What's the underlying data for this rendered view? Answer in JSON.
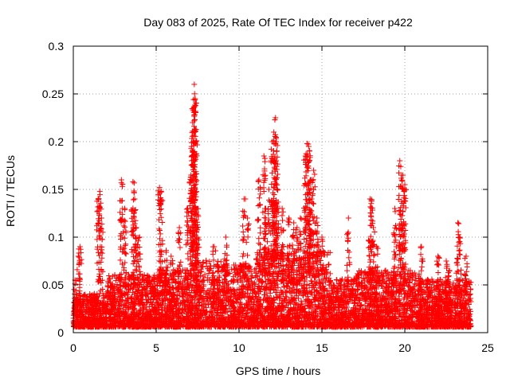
{
  "chart_data": {
    "type": "scatter",
    "title": "Day 083 of 2025, Rate Of TEC Index for receiver p422",
    "xlabel": "GPS time / hours",
    "ylabel": "ROTI / TECUs",
    "xlim": [
      0,
      25
    ],
    "ylim": [
      0,
      0.3
    ],
    "x_ticks": [
      0,
      5,
      10,
      15,
      20,
      25
    ],
    "x_tick_labels": [
      "0",
      "5",
      "10",
      "15",
      "20",
      "25"
    ],
    "y_ticks": [
      0,
      0.05,
      0.1,
      0.15,
      0.2,
      0.25,
      0.3
    ],
    "y_tick_labels": [
      "0",
      "0.05",
      "0.1",
      "0.15",
      "0.2",
      "0.25",
      "0.3"
    ],
    "grid": true,
    "marker": "+",
    "colors": {
      "points": "#ff0000",
      "grid": "#a0a0a0",
      "axes": "#000000"
    },
    "series": [
      {
        "name": "ROTI",
        "x": [
          0.1,
          0.3,
          0.4,
          1.5,
          1.6,
          1.7,
          2.9,
          3.1,
          3.6,
          3.7,
          3.8,
          4.0,
          5.2,
          5.3,
          5.6,
          5.9,
          6.4,
          6.9,
          7.1,
          7.15,
          7.2,
          7.25,
          7.3,
          7.35,
          7.4,
          7.45,
          7.5,
          8.5,
          9.2,
          10.3,
          10.5,
          11.2,
          11.5,
          11.6,
          11.8,
          12.0,
          12.1,
          12.2,
          12.25,
          12.3,
          12.6,
          13.0,
          13.3,
          13.5,
          13.7,
          14.0,
          14.1,
          14.2,
          14.25,
          14.3,
          14.5,
          14.7,
          15.0,
          16.6,
          17.9,
          18.0,
          18.1,
          18.3,
          19.4,
          19.7,
          19.8,
          19.9,
          20.0,
          21.0,
          22.0,
          22.5,
          22.7,
          23.2,
          23.3,
          23.7
        ],
        "y": [
          0.055,
          0.08,
          0.09,
          0.14,
          0.148,
          0.12,
          0.16,
          0.13,
          0.158,
          0.14,
          0.11,
          0.1,
          0.152,
          0.148,
          0.086,
          0.08,
          0.11,
          0.13,
          0.165,
          0.185,
          0.22,
          0.235,
          0.26,
          0.245,
          0.2,
          0.13,
          0.1,
          0.09,
          0.1,
          0.14,
          0.12,
          0.16,
          0.185,
          0.13,
          0.15,
          0.2,
          0.21,
          0.225,
          0.2,
          0.15,
          0.13,
          0.12,
          0.115,
          0.11,
          0.12,
          0.185,
          0.198,
          0.195,
          0.18,
          0.16,
          0.17,
          0.12,
          0.1,
          0.12,
          0.14,
          0.138,
          0.11,
          0.09,
          0.13,
          0.18,
          0.165,
          0.15,
          0.155,
          0.09,
          0.08,
          0.075,
          0.065,
          0.115,
          0.1,
          0.08
        ]
      }
    ],
    "baseline_density": [
      {
        "from": 0,
        "to": 2,
        "upper": 0.035
      },
      {
        "from": 2,
        "to": 5,
        "upper": 0.055
      },
      {
        "from": 5,
        "to": 7,
        "upper": 0.06
      },
      {
        "from": 7,
        "to": 9,
        "upper": 0.07
      },
      {
        "from": 9,
        "to": 11,
        "upper": 0.065
      },
      {
        "from": 11,
        "to": 15.5,
        "upper": 0.08
      },
      {
        "from": 15.5,
        "to": 17,
        "upper": 0.05
      },
      {
        "from": 17,
        "to": 21,
        "upper": 0.06
      },
      {
        "from": 21,
        "to": 24,
        "upper": 0.05
      }
    ]
  }
}
